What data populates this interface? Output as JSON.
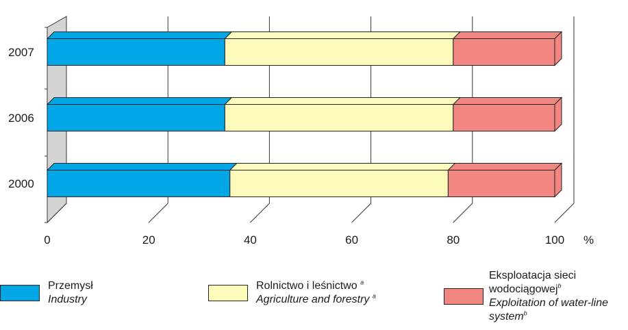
{
  "chart_data": {
    "type": "bar",
    "orientation": "horizontal",
    "stacked": true,
    "categories": [
      "2007",
      "2006",
      "2000"
    ],
    "series": [
      {
        "name": "Przemysł",
        "name_en": "Industry",
        "values": [
          35,
          35,
          36
        ],
        "color": "#00a6e6"
      },
      {
        "name": "Rolnictwo i leśnictwo",
        "name_en": "Agriculture and forestry",
        "values": [
          45,
          45,
          43
        ],
        "color": "#fdfbba"
      },
      {
        "name": "Eksploatacja sieci wodociągowej",
        "name_en": "Exploitation of water-line system",
        "values": [
          20,
          20,
          21
        ],
        "color": "#f28680"
      }
    ],
    "xlim": [
      0,
      100
    ],
    "xticks": [
      0,
      20,
      40,
      60,
      80,
      100
    ],
    "xunit": "%",
    "grid": true,
    "legend_position": "bottom"
  },
  "legend": [
    {
      "pl": "Przemysł",
      "en": "Industry",
      "note_pl": "",
      "note_en": ""
    },
    {
      "pl": "Rolnictwo i leśnictwo",
      "en": "Agriculture and forestry",
      "note_pl": "a",
      "note_en": "a"
    },
    {
      "pl_1": "Eksploatacja sieci",
      "pl_2": "wodociągowej",
      "en_1": "Exploitation of water-line",
      "en_2": "system",
      "note_pl": "b",
      "note_en": "b"
    }
  ]
}
